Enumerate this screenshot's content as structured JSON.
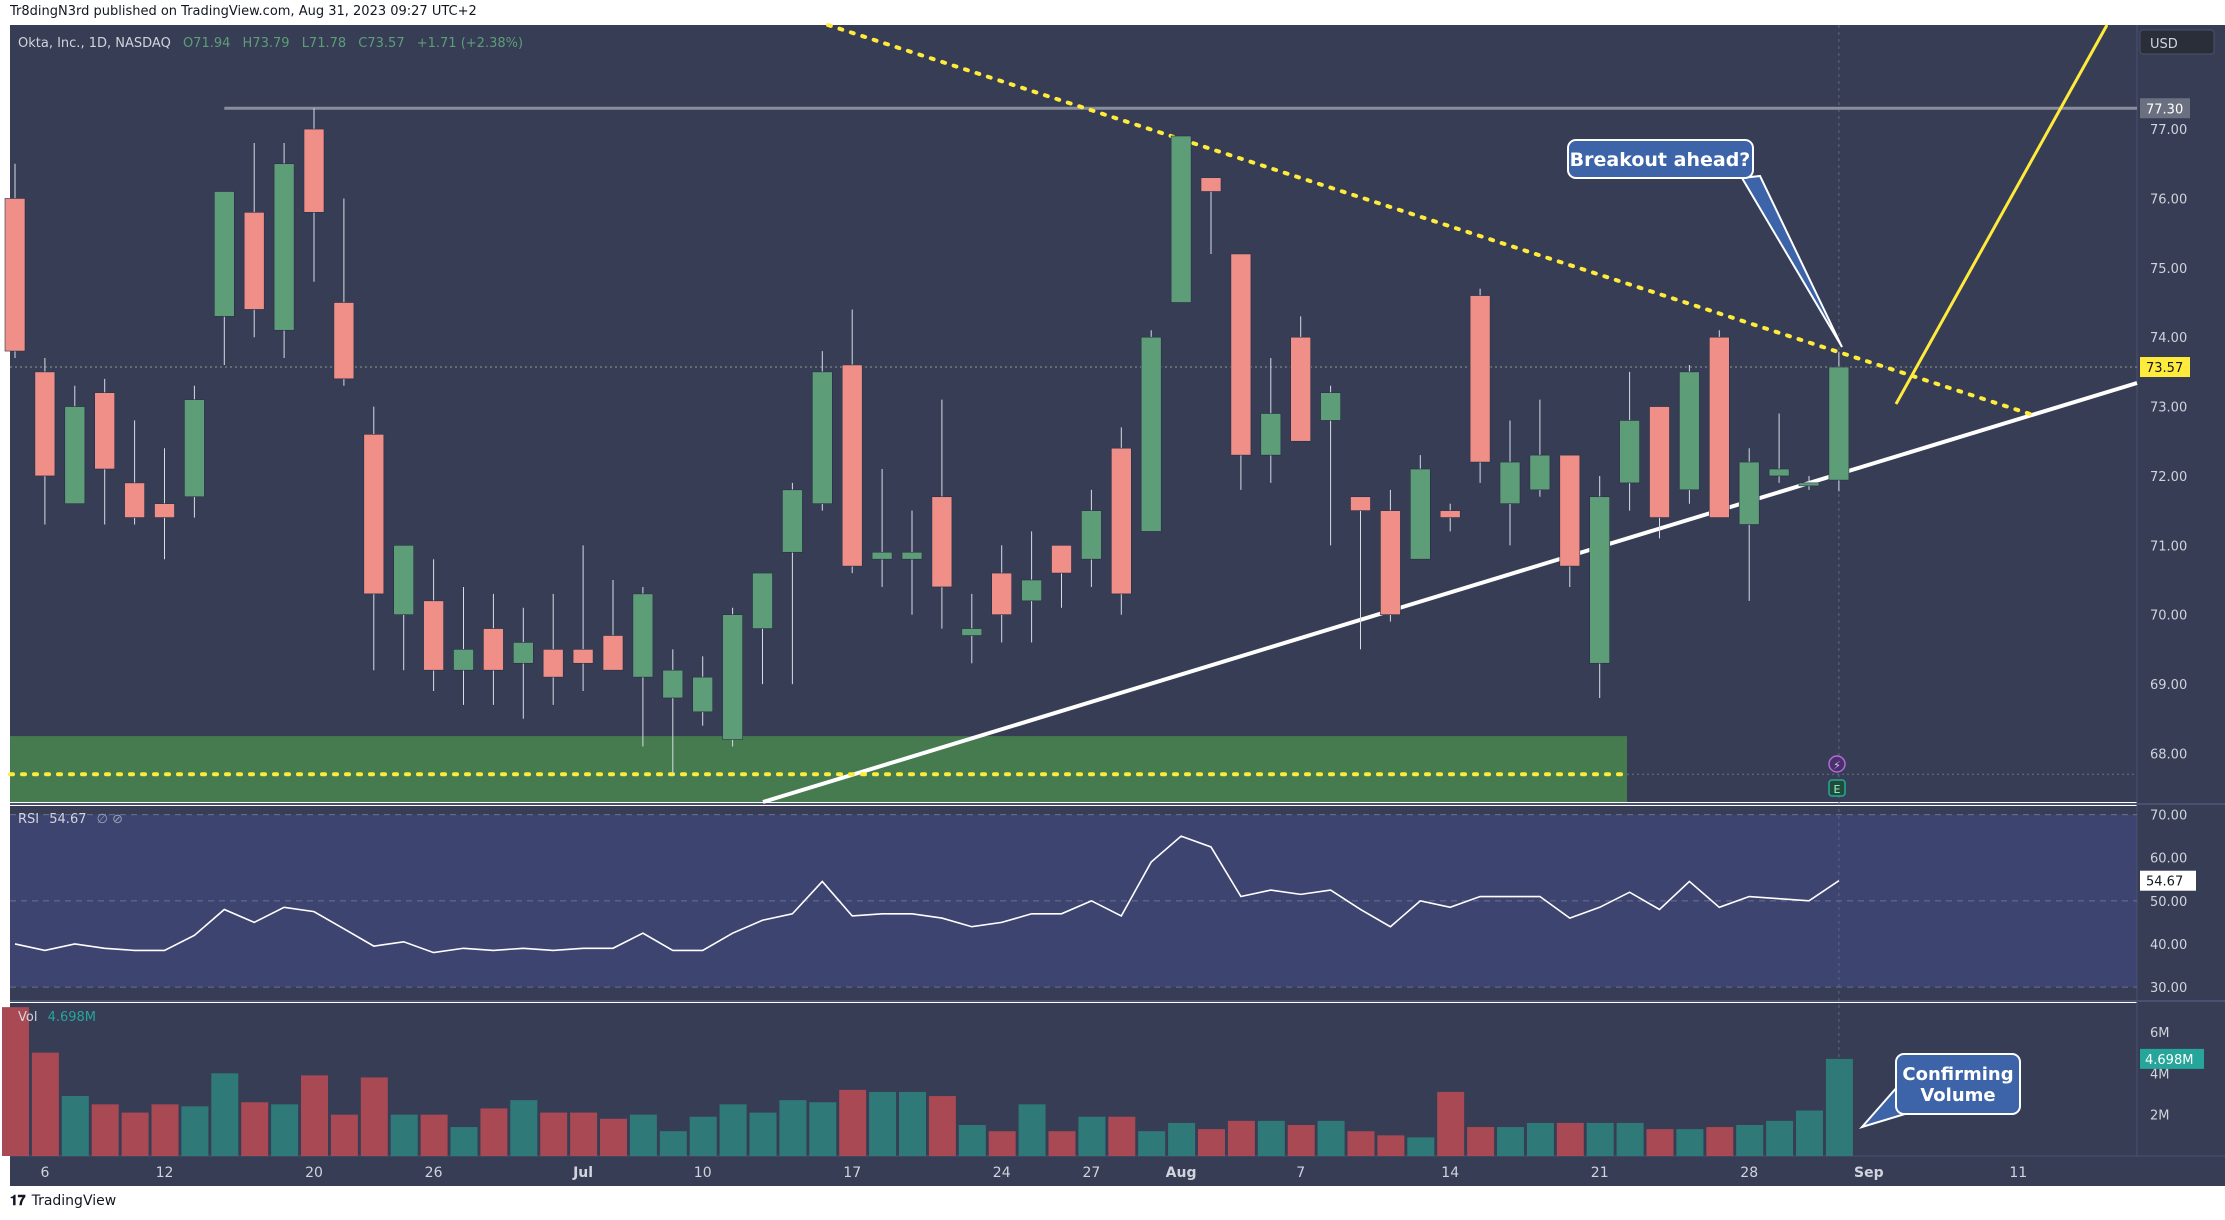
{
  "header": {
    "published": "Tr8dingN3rd published on TradingView.com, Aug 31, 2023 09:27 UTC+2"
  },
  "footer": {
    "brand": "TradingView"
  },
  "legend": {
    "symbol": "Okta, Inc., 1D, NASDAQ",
    "open": "O71.94",
    "high": "H73.79",
    "low": "L71.78",
    "close": "C73.57",
    "change": "+1.71 (+2.38%)"
  },
  "currency": "USD",
  "colors": {
    "background": "#363d55",
    "up": "#5d9e78",
    "down": "#ef8f87",
    "vol_up": "#2f7a78",
    "vol_down": "#a84953",
    "support_zone": "#467a4f",
    "trendline": "#ffffff",
    "resistance": "#ffeb3b"
  },
  "annotations": {
    "breakout": "Breakout ahead?",
    "volume_line1": "Confirming",
    "volume_line2": "Volume",
    "resistance_level": "77.30",
    "last_price": "73.57",
    "rsi_last": "54.67",
    "vol_last": "4.698M"
  },
  "rsi_panel": {
    "label": "RSI",
    "value": "54.67",
    "icons": "∅ ⊘"
  },
  "vol_panel": {
    "label": "Vol",
    "value": "4.698M"
  },
  "chart_data": {
    "type": "candlestick",
    "title": "",
    "price_ticks": [
      "68.00",
      "69.00",
      "70.00",
      "71.00",
      "72.00",
      "73.00",
      "74.00",
      "75.00",
      "76.00",
      "77.00"
    ],
    "ylim": [
      67.3,
      78.5
    ],
    "rsi_ticks": [
      "30.00",
      "40.00",
      "50.00",
      "60.00",
      "70.00"
    ],
    "vol_ticks": [
      "2M",
      "4M",
      "6M"
    ],
    "x_ticks": [
      {
        "label": "6",
        "i": 1
      },
      {
        "label": "12",
        "i": 5
      },
      {
        "label": "20",
        "i": 10
      },
      {
        "label": "26",
        "i": 14
      },
      {
        "label": "Jul",
        "i": 19
      },
      {
        "label": "10",
        "i": 23
      },
      {
        "label": "17",
        "i": 28
      },
      {
        "label": "24",
        "i": 33
      },
      {
        "label": "27",
        "i": 36
      },
      {
        "label": "Aug",
        "i": 39
      },
      {
        "label": "7",
        "i": 43
      },
      {
        "label": "14",
        "i": 48
      },
      {
        "label": "21",
        "i": 53
      },
      {
        "label": "28",
        "i": 58
      },
      {
        "label": "Sep",
        "i": 62
      },
      {
        "label": "11",
        "i": 67
      }
    ],
    "candles": [
      {
        "o": 76.0,
        "h": 76.5,
        "l": 73.7,
        "c": 73.8
      },
      {
        "o": 73.5,
        "h": 73.7,
        "l": 71.3,
        "c": 72.0
      },
      {
        "o": 71.6,
        "h": 73.3,
        "l": 71.6,
        "c": 73.0
      },
      {
        "o": 73.2,
        "h": 73.4,
        "l": 71.3,
        "c": 72.1
      },
      {
        "o": 71.9,
        "h": 72.8,
        "l": 71.3,
        "c": 71.4
      },
      {
        "o": 71.6,
        "h": 72.4,
        "l": 70.8,
        "c": 71.4
      },
      {
        "o": 71.7,
        "h": 73.3,
        "l": 71.4,
        "c": 73.1
      },
      {
        "o": 74.3,
        "h": 76.1,
        "l": 73.6,
        "c": 76.1
      },
      {
        "o": 75.8,
        "h": 76.8,
        "l": 74.0,
        "c": 74.4
      },
      {
        "o": 74.1,
        "h": 76.8,
        "l": 73.7,
        "c": 76.5
      },
      {
        "o": 77.0,
        "h": 77.3,
        "l": 74.8,
        "c": 75.8
      },
      {
        "o": 74.5,
        "h": 76.0,
        "l": 73.3,
        "c": 73.4
      },
      {
        "o": 72.6,
        "h": 73.0,
        "l": 69.2,
        "c": 70.3
      },
      {
        "o": 70.0,
        "h": 71.0,
        "l": 69.2,
        "c": 71.0
      },
      {
        "o": 70.2,
        "h": 70.8,
        "l": 68.9,
        "c": 69.2
      },
      {
        "o": 69.2,
        "h": 70.4,
        "l": 68.7,
        "c": 69.5
      },
      {
        "o": 69.8,
        "h": 70.3,
        "l": 68.7,
        "c": 69.2
      },
      {
        "o": 69.3,
        "h": 70.1,
        "l": 68.5,
        "c": 69.6
      },
      {
        "o": 69.5,
        "h": 70.3,
        "l": 68.7,
        "c": 69.1
      },
      {
        "o": 69.5,
        "h": 71.0,
        "l": 68.9,
        "c": 69.3
      },
      {
        "o": 69.7,
        "h": 70.5,
        "l": 69.2,
        "c": 69.2
      },
      {
        "o": 69.1,
        "h": 70.4,
        "l": 68.1,
        "c": 70.3
      },
      {
        "o": 68.8,
        "h": 69.5,
        "l": 67.7,
        "c": 69.2
      },
      {
        "o": 68.6,
        "h": 69.4,
        "l": 68.4,
        "c": 69.1
      },
      {
        "o": 68.2,
        "h": 70.1,
        "l": 68.1,
        "c": 70.0
      },
      {
        "o": 69.8,
        "h": 70.6,
        "l": 69.0,
        "c": 70.6
      },
      {
        "o": 70.9,
        "h": 71.9,
        "l": 69.0,
        "c": 71.8
      },
      {
        "o": 71.6,
        "h": 73.8,
        "l": 71.5,
        "c": 73.5
      },
      {
        "o": 73.6,
        "h": 74.4,
        "l": 70.6,
        "c": 70.7
      },
      {
        "o": 70.8,
        "h": 72.1,
        "l": 70.4,
        "c": 70.9
      },
      {
        "o": 70.8,
        "h": 71.5,
        "l": 70.0,
        "c": 70.9
      },
      {
        "o": 71.7,
        "h": 73.1,
        "l": 69.8,
        "c": 70.4
      },
      {
        "o": 69.7,
        "h": 70.3,
        "l": 69.3,
        "c": 69.8
      },
      {
        "o": 70.6,
        "h": 71.0,
        "l": 69.6,
        "c": 70.0
      },
      {
        "o": 70.2,
        "h": 71.2,
        "l": 69.6,
        "c": 70.5
      },
      {
        "o": 71.0,
        "h": 71.0,
        "l": 70.1,
        "c": 70.6
      },
      {
        "o": 70.8,
        "h": 71.8,
        "l": 70.4,
        "c": 71.5
      },
      {
        "o": 72.4,
        "h": 72.7,
        "l": 70.0,
        "c": 70.3
      },
      {
        "o": 71.2,
        "h": 74.1,
        "l": 71.2,
        "c": 74.0
      },
      {
        "o": 74.5,
        "h": 76.9,
        "l": 74.5,
        "c": 76.9
      },
      {
        "o": 76.3,
        "h": 76.2,
        "l": 75.2,
        "c": 76.1
      },
      {
        "o": 75.2,
        "h": 75.2,
        "l": 71.8,
        "c": 72.3
      },
      {
        "o": 72.3,
        "h": 73.7,
        "l": 71.9,
        "c": 72.9
      },
      {
        "o": 74.0,
        "h": 74.3,
        "l": 72.5,
        "c": 72.5
      },
      {
        "o": 72.8,
        "h": 73.3,
        "l": 71.0,
        "c": 73.2
      },
      {
        "o": 71.7,
        "h": 71.7,
        "l": 69.5,
        "c": 71.5
      },
      {
        "o": 71.5,
        "h": 71.8,
        "l": 69.9,
        "c": 70.0
      },
      {
        "o": 70.8,
        "h": 72.3,
        "l": 70.8,
        "c": 72.1
      },
      {
        "o": 71.5,
        "h": 71.6,
        "l": 71.2,
        "c": 71.4
      },
      {
        "o": 74.6,
        "h": 74.7,
        "l": 71.9,
        "c": 72.2
      },
      {
        "o": 71.6,
        "h": 72.8,
        "l": 71.0,
        "c": 72.2
      },
      {
        "o": 71.8,
        "h": 73.1,
        "l": 71.7,
        "c": 72.3
      },
      {
        "o": 72.3,
        "h": 72.3,
        "l": 70.4,
        "c": 70.7
      },
      {
        "o": 69.3,
        "h": 72.0,
        "l": 68.8,
        "c": 71.7
      },
      {
        "o": 71.9,
        "h": 73.5,
        "l": 71.5,
        "c": 72.8
      },
      {
        "o": 73.0,
        "h": 73.0,
        "l": 71.1,
        "c": 71.4
      },
      {
        "o": 71.8,
        "h": 73.6,
        "l": 71.6,
        "c": 73.5
      },
      {
        "o": 74.0,
        "h": 74.1,
        "l": 71.4,
        "c": 71.4
      },
      {
        "o": 71.3,
        "h": 72.4,
        "l": 70.2,
        "c": 72.2
      },
      {
        "o": 72.0,
        "h": 72.9,
        "l": 71.9,
        "c": 72.1
      },
      {
        "o": 71.9,
        "h": 72.0,
        "l": 71.8,
        "c": 71.9
      },
      {
        "o": 71.94,
        "h": 73.79,
        "l": 71.78,
        "c": 73.57
      }
    ],
    "rsi": [
      40,
      38.5,
      40,
      39,
      38.5,
      38.5,
      42,
      48,
      45,
      48.5,
      47.5,
      43.5,
      39.5,
      40.5,
      38,
      39,
      38.5,
      39,
      38.5,
      39,
      39,
      42.5,
      38.5,
      38.5,
      42.5,
      45.5,
      47,
      54.5,
      46.5,
      47,
      47,
      46,
      44,
      45,
      47,
      47,
      50,
      46.5,
      59,
      65,
      62.5,
      51,
      52.5,
      51.5,
      52.5,
      48,
      44,
      50,
      48.5,
      51,
      51,
      51,
      46,
      48.5,
      52,
      48,
      54.5,
      48.5,
      51,
      50.5,
      50,
      54.67
    ],
    "rsi_ylim": [
      27,
      72
    ],
    "volume": [
      7.2,
      5.0,
      2.9,
      2.5,
      2.1,
      2.5,
      2.4,
      4.0,
      2.6,
      2.5,
      3.9,
      2.0,
      3.8,
      2.0,
      2.0,
      1.4,
      2.3,
      2.7,
      2.1,
      2.1,
      1.8,
      2.0,
      1.2,
      1.9,
      2.5,
      2.1,
      2.7,
      2.6,
      3.2,
      3.1,
      3.1,
      2.9,
      1.5,
      1.2,
      2.5,
      1.2,
      1.9,
      1.9,
      1.2,
      1.6,
      1.3,
      1.7,
      1.7,
      1.5,
      1.7,
      1.2,
      1.0,
      0.9,
      3.1,
      1.4,
      1.4,
      1.6,
      1.6,
      1.6,
      1.6,
      1.3,
      1.3,
      1.4,
      1.5,
      1.7,
      2.2,
      4.698
    ],
    "vol_ylim": [
      0,
      7.4
    ]
  }
}
